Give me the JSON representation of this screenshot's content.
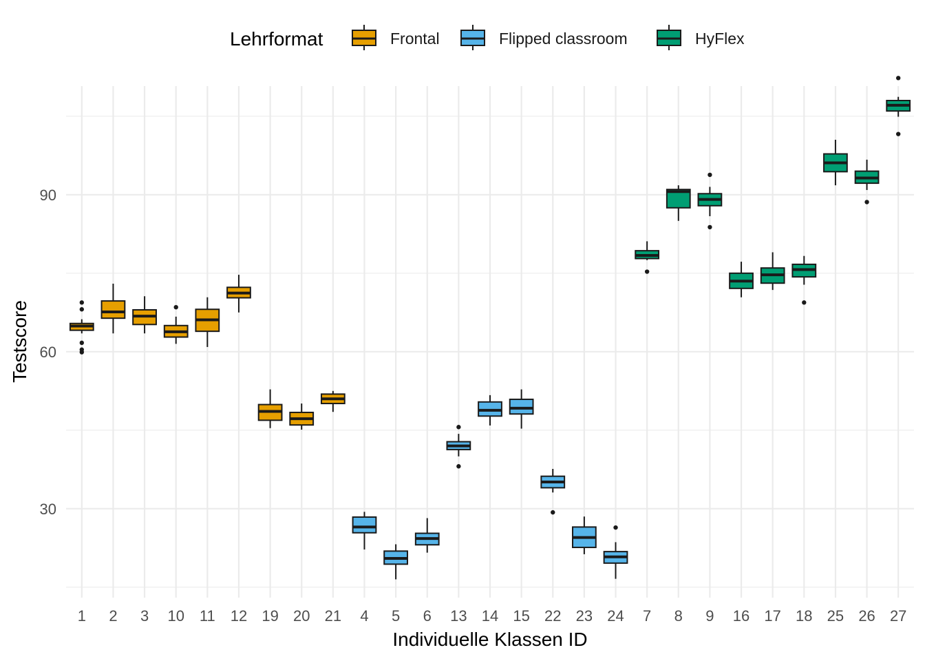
{
  "chart_data": {
    "type": "boxplot",
    "title": "",
    "xlabel": "Individuelle Klassen ID",
    "ylabel": "Testscore",
    "ylim": [
      13,
      113
    ],
    "yticks": [
      30,
      60,
      90
    ],
    "grid": true,
    "legend": {
      "title": "Lehrformat",
      "position": "top",
      "entries": [
        {
          "name": "Frontal",
          "color": "#E69F00"
        },
        {
          "name": "Flipped classroom",
          "color": "#56B4E9"
        },
        {
          "name": "HyFlex",
          "color": "#009E73"
        }
      ]
    },
    "series": [
      {
        "name": "Frontal",
        "color": "#E69F00",
        "boxes": [
          {
            "x": "1",
            "whisker_low": 63.5,
            "q1": 64.1,
            "median": 64.9,
            "q3": 65.4,
            "whisker_high": 66.2,
            "outliers": [
              69.4,
              68.1,
              61.7,
              60.4,
              59.9
            ]
          },
          {
            "x": "2",
            "whisker_low": 63.5,
            "q1": 66.4,
            "median": 67.6,
            "q3": 69.7,
            "whisker_high": 73.0,
            "outliers": []
          },
          {
            "x": "3",
            "whisker_low": 63.5,
            "q1": 65.2,
            "median": 66.8,
            "q3": 68.0,
            "whisker_high": 70.6,
            "outliers": []
          },
          {
            "x": "10",
            "whisker_low": 61.5,
            "q1": 62.8,
            "median": 63.8,
            "q3": 65.0,
            "whisker_high": 66.7,
            "outliers": [
              68.5
            ]
          },
          {
            "x": "11",
            "whisker_low": 60.9,
            "q1": 63.9,
            "median": 66.1,
            "q3": 68.1,
            "whisker_high": 70.4,
            "outliers": []
          },
          {
            "x": "12",
            "whisker_low": 67.5,
            "q1": 70.3,
            "median": 71.2,
            "q3": 72.3,
            "whisker_high": 74.7,
            "outliers": []
          },
          {
            "x": "19",
            "whisker_low": 45.4,
            "q1": 46.9,
            "median": 48.6,
            "q3": 49.9,
            "whisker_high": 52.8,
            "outliers": []
          },
          {
            "x": "20",
            "whisker_low": 45.1,
            "q1": 46.0,
            "median": 47.2,
            "q3": 48.4,
            "whisker_high": 50.1,
            "outliers": []
          },
          {
            "x": "21",
            "whisker_low": 48.5,
            "q1": 50.1,
            "median": 51.0,
            "q3": 51.9,
            "whisker_high": 52.5,
            "outliers": []
          }
        ]
      },
      {
        "name": "Flipped classroom",
        "color": "#56B4E9",
        "boxes": [
          {
            "x": "4",
            "whisker_low": 22.2,
            "q1": 25.4,
            "median": 26.5,
            "q3": 28.4,
            "whisker_high": 29.4,
            "outliers": []
          },
          {
            "x": "5",
            "whisker_low": 16.5,
            "q1": 19.4,
            "median": 20.5,
            "q3": 21.9,
            "whisker_high": 23.2,
            "outliers": []
          },
          {
            "x": "6",
            "whisker_low": 21.6,
            "q1": 23.1,
            "median": 24.3,
            "q3": 25.3,
            "whisker_high": 28.2,
            "outliers": []
          },
          {
            "x": "13",
            "whisker_low": 40.0,
            "q1": 41.3,
            "median": 42.0,
            "q3": 42.8,
            "whisker_high": 44.3,
            "outliers": [
              45.6,
              38.1
            ]
          },
          {
            "x": "14",
            "whisker_low": 45.9,
            "q1": 47.7,
            "median": 48.8,
            "q3": 50.4,
            "whisker_high": 51.7,
            "outliers": []
          },
          {
            "x": "15",
            "whisker_low": 45.3,
            "q1": 48.1,
            "median": 49.2,
            "q3": 50.9,
            "whisker_high": 52.8,
            "outliers": []
          },
          {
            "x": "22",
            "whisker_low": 33.1,
            "q1": 34.0,
            "median": 35.1,
            "q3": 36.2,
            "whisker_high": 37.6,
            "outliers": [
              29.3
            ]
          },
          {
            "x": "23",
            "whisker_low": 21.3,
            "q1": 22.6,
            "median": 24.5,
            "q3": 26.5,
            "whisker_high": 28.5,
            "outliers": []
          },
          {
            "x": "24",
            "whisker_low": 16.6,
            "q1": 19.6,
            "median": 20.8,
            "q3": 21.8,
            "whisker_high": 23.6,
            "outliers": [
              26.4
            ]
          }
        ]
      },
      {
        "name": "HyFlex",
        "color": "#009E73",
        "boxes": [
          {
            "x": "7",
            "whisker_low": 77.5,
            "q1": 77.8,
            "median": 78.4,
            "q3": 79.3,
            "whisker_high": 81.1,
            "outliers": [
              75.3
            ]
          },
          {
            "x": "8",
            "whisker_low": 85.0,
            "q1": 87.5,
            "median": 90.6,
            "q3": 91.0,
            "whisker_high": 91.8,
            "outliers": []
          },
          {
            "x": "9",
            "whisker_low": 85.9,
            "q1": 87.9,
            "median": 89.1,
            "q3": 90.2,
            "whisker_high": 91.5,
            "outliers": [
              93.8,
              83.8
            ]
          },
          {
            "x": "16",
            "whisker_low": 70.4,
            "q1": 72.1,
            "median": 73.5,
            "q3": 75.0,
            "whisker_high": 77.2,
            "outliers": []
          },
          {
            "x": "17",
            "whisker_low": 71.8,
            "q1": 73.1,
            "median": 74.7,
            "q3": 76.0,
            "whisker_high": 79.0,
            "outliers": []
          },
          {
            "x": "18",
            "whisker_low": 72.8,
            "q1": 74.3,
            "median": 75.7,
            "q3": 76.7,
            "whisker_high": 78.3,
            "outliers": [
              69.4
            ]
          },
          {
            "x": "25",
            "whisker_low": 91.8,
            "q1": 94.4,
            "median": 96.1,
            "q3": 97.8,
            "whisker_high": 100.5,
            "outliers": []
          },
          {
            "x": "26",
            "whisker_low": 90.9,
            "q1": 92.2,
            "median": 93.2,
            "q3": 94.5,
            "whisker_high": 96.7,
            "outliers": [
              88.6
            ]
          },
          {
            "x": "27",
            "whisker_low": 104.9,
            "q1": 106.0,
            "median": 107.1,
            "q3": 108.0,
            "whisker_high": 108.7,
            "outliers": [
              112.3,
              101.6
            ]
          }
        ]
      }
    ]
  }
}
